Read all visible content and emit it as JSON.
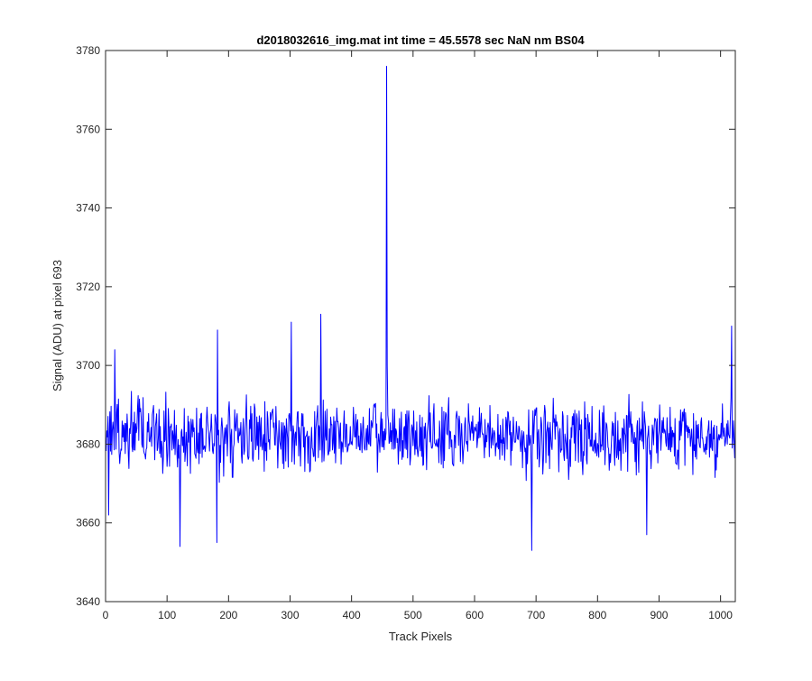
{
  "chart_data": {
    "type": "line",
    "title": "d2018032616_img.mat int time = 45.5578 sec  NaN nm BS04",
    "xlabel": "Track Pixels",
    "ylabel": "Signal (ADU) at pixel 693",
    "xlim": [
      0,
      1024
    ],
    "ylim": [
      3640,
      3780
    ],
    "xticks": [
      0,
      100,
      200,
      300,
      400,
      500,
      600,
      700,
      800,
      900,
      1000
    ],
    "yticks": [
      3640,
      3660,
      3680,
      3700,
      3720,
      3740,
      3760,
      3780
    ],
    "grid": false,
    "series": [
      {
        "color": "#0000ff",
        "generator": {
          "x_start": 1,
          "x_end": 1024,
          "baseline": 3682,
          "noise_amplitude": 8,
          "peaks": [
            {
              "x": 457,
              "y": 3776
            },
            {
              "x": 458,
              "y": 3700
            },
            {
              "x": 121,
              "y": 3654
            },
            {
              "x": 693,
              "y": 3653
            },
            {
              "x": 350,
              "y": 3713
            },
            {
              "x": 302,
              "y": 3711
            },
            {
              "x": 1018,
              "y": 3710
            },
            {
              "x": 181,
              "y": 3655
            },
            {
              "x": 182,
              "y": 3709
            },
            {
              "x": 880,
              "y": 3657
            },
            {
              "x": 5,
              "y": 3662
            },
            {
              "x": 15,
              "y": 3704
            }
          ]
        }
      }
    ]
  }
}
